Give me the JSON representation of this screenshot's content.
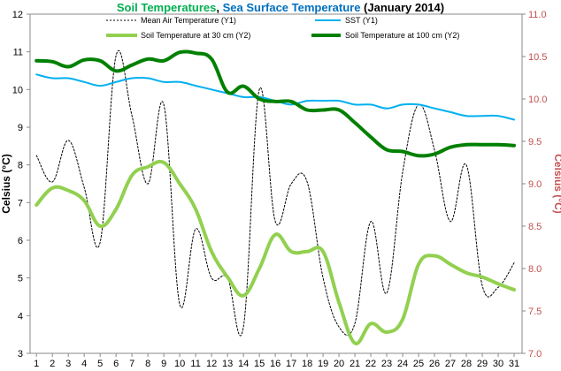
{
  "chart_data": {
    "type": "line",
    "title": {
      "part1": "Soil Temperatures",
      "sep": ", ",
      "part2": "Sea Surface Temperature",
      "part3": " (January 2014)"
    },
    "ylabel_left": "Celsius (°C)",
    "ylabel_right": "Celsius (°C)",
    "xlabel": "",
    "x": [
      1,
      2,
      3,
      4,
      5,
      6,
      7,
      8,
      9,
      10,
      11,
      12,
      13,
      14,
      15,
      16,
      17,
      18,
      19,
      20,
      21,
      22,
      23,
      24,
      25,
      26,
      27,
      28,
      29,
      30,
      31
    ],
    "xlim": [
      0.6,
      31.5
    ],
    "ylim_left": [
      3,
      12
    ],
    "yticks_left": [
      "3",
      "4",
      "5",
      "6",
      "7",
      "8",
      "9",
      "10",
      "11",
      "12"
    ],
    "ylim_right": [
      7.0,
      11.0
    ],
    "yticks_right": [
      "7.0",
      "7.5",
      "8.0",
      "8.5",
      "9.0",
      "9.5",
      "10.0",
      "10.5",
      "11.0"
    ],
    "grid": false,
    "legend_position": "top",
    "series": [
      {
        "name": "Mean Air Temperature (Y1)",
        "axis": "left",
        "color": "#000000",
        "style": "dashed",
        "values": [
          8.25,
          7.55,
          8.65,
          7.4,
          5.95,
          10.9,
          9.3,
          7.5,
          9.6,
          4.3,
          6.3,
          5.0,
          5.0,
          3.7,
          10.0,
          6.5,
          7.5,
          7.55,
          5.0,
          3.7,
          3.8,
          6.5,
          4.6,
          7.8,
          9.6,
          8.4,
          6.5,
          8.0,
          4.8,
          4.75,
          5.4
        ]
      },
      {
        "name": "SST (Y1)",
        "axis": "left",
        "color": "#00b0f0",
        "style": "solid",
        "values": [
          10.4,
          10.3,
          10.3,
          10.2,
          10.1,
          10.2,
          10.3,
          10.3,
          10.2,
          10.2,
          10.1,
          10.0,
          9.9,
          9.8,
          9.8,
          9.7,
          9.6,
          9.7,
          9.7,
          9.7,
          9.6,
          9.6,
          9.5,
          9.6,
          9.6,
          9.5,
          9.4,
          9.3,
          9.3,
          9.3,
          9.2
        ]
      },
      {
        "name": "Soil Temperature at 30 cm (Y2)",
        "axis": "right",
        "color": "#92d050",
        "style": "solid",
        "values": [
          8.75,
          8.95,
          8.92,
          8.8,
          8.5,
          8.7,
          9.1,
          9.2,
          9.25,
          9.0,
          8.7,
          8.2,
          7.9,
          7.68,
          8.0,
          8.4,
          8.2,
          8.2,
          8.2,
          7.6,
          7.12,
          7.35,
          7.25,
          7.4,
          8.05,
          8.15,
          8.05,
          7.95,
          7.9,
          7.82,
          7.75
        ]
      },
      {
        "name": "Soil Temperature at 100 cm (Y2)",
        "axis": "right",
        "color": "#008000",
        "style": "solid",
        "values": [
          10.45,
          10.44,
          10.38,
          10.46,
          10.45,
          10.33,
          10.4,
          10.47,
          10.45,
          10.55,
          10.54,
          10.47,
          10.08,
          10.15,
          10.0,
          9.97,
          9.97,
          9.87,
          9.87,
          9.87,
          9.72,
          9.55,
          9.4,
          9.38,
          9.33,
          9.35,
          9.43,
          9.46,
          9.46,
          9.46,
          9.45
        ]
      }
    ]
  }
}
